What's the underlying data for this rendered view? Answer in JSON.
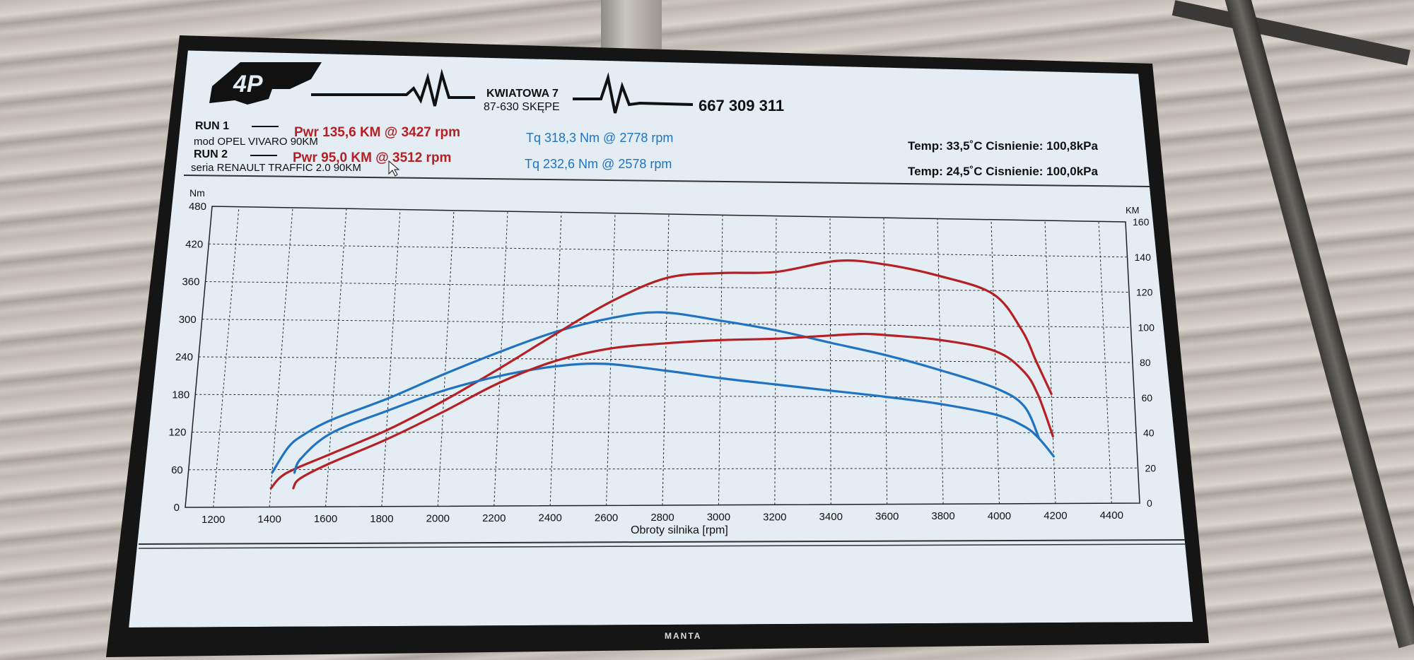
{
  "header": {
    "logo_text": "4P",
    "address_line1": "KWIATOWA 7",
    "address_line2": "87-630 SKĘPE",
    "phone": "667 309 311"
  },
  "runs": [
    {
      "label": "RUN 1",
      "power": "Pwr  135,6 KM @ 3427 rpm",
      "torque": "Tq 318,3 Nm @ 2778 rpm",
      "description": "mod OPEL VIVARO 90KM",
      "conditions": "Temp: 33,5˚C   Cisnienie: 100,8kPa"
    },
    {
      "label": "RUN 2",
      "power": "Pwr  95,0 KM @ 3512 rpm",
      "torque": "Tq 232,6 Nm @ 2578 rpm",
      "description": "seria RENAULT TRAFFIC 2.0 90KM",
      "conditions": "Temp: 24,5˚C   Cisnienie: 100,0kPa"
    }
  ],
  "tv": {
    "brand": "MANTA"
  },
  "colors": {
    "power": "#b52025",
    "torque": "#1f73c1",
    "grid": "#2b2b2b",
    "screen": "#e3edf3"
  },
  "chart_data": {
    "type": "line",
    "xlabel": "Obroty silnika [rpm]",
    "ylabel": "Nm",
    "y2label": "KM",
    "xlim": [
      1100,
      4500
    ],
    "ylim": [
      0,
      480
    ],
    "y2lim": [
      0,
      160
    ],
    "xticks": [
      1200,
      1400,
      1600,
      1800,
      2000,
      2200,
      2400,
      2600,
      2800,
      3000,
      3200,
      3400,
      3600,
      3800,
      4000,
      4200,
      4400
    ],
    "yticks": [
      0,
      60,
      120,
      180,
      240,
      300,
      360,
      420,
      480
    ],
    "y2ticks": [
      0,
      20,
      40,
      60,
      80,
      100,
      120,
      140,
      160
    ],
    "grid": true,
    "series": [
      {
        "run": "RUN 1",
        "quantity": "torque",
        "axis": "left",
        "x": [
          1400,
          1450,
          1500,
          1600,
          1800,
          2000,
          2200,
          2400,
          2600,
          2778,
          3000,
          3200,
          3400,
          3600,
          3800,
          4000,
          4100,
          4150
        ],
        "y": [
          55,
          95,
          115,
          140,
          175,
          215,
          252,
          285,
          308,
          318,
          305,
          290,
          270,
          250,
          225,
          195,
          165,
          110
        ]
      },
      {
        "run": "RUN 1",
        "quantity": "power",
        "axis": "right",
        "x": [
          1400,
          1450,
          1600,
          1800,
          2000,
          2200,
          2400,
          2600,
          2800,
          3000,
          3200,
          3427,
          3600,
          3800,
          4000,
          4100,
          4150,
          4200
        ],
        "y": [
          10,
          18,
          28,
          41,
          57,
          75,
          94,
          112,
          125,
          128,
          129,
          135.6,
          134,
          128,
          118,
          98,
          80,
          62
        ]
      },
      {
        "run": "RUN 2",
        "quantity": "torque",
        "axis": "left",
        "x": [
          1480,
          1500,
          1600,
          1800,
          2000,
          2200,
          2400,
          2578,
          2800,
          3000,
          3200,
          3400,
          3600,
          3800,
          4000,
          4100,
          4150,
          4200
        ],
        "y": [
          55,
          78,
          118,
          155,
          188,
          212,
          228,
          232.6,
          222,
          210,
          200,
          190,
          180,
          168,
          150,
          130,
          110,
          80
        ]
      },
      {
        "run": "RUN 2",
        "quantity": "power",
        "axis": "right",
        "x": [
          1480,
          1500,
          1600,
          1800,
          2000,
          2200,
          2400,
          2600,
          2800,
          3000,
          3200,
          3400,
          3512,
          3600,
          3800,
          4000,
          4100,
          4150,
          4200
        ],
        "y": [
          10,
          15,
          23,
          36,
          51,
          67,
          79,
          86,
          89,
          91,
          92,
          94,
          95,
          94.5,
          92,
          86,
          75,
          62,
          38
        ]
      }
    ]
  }
}
